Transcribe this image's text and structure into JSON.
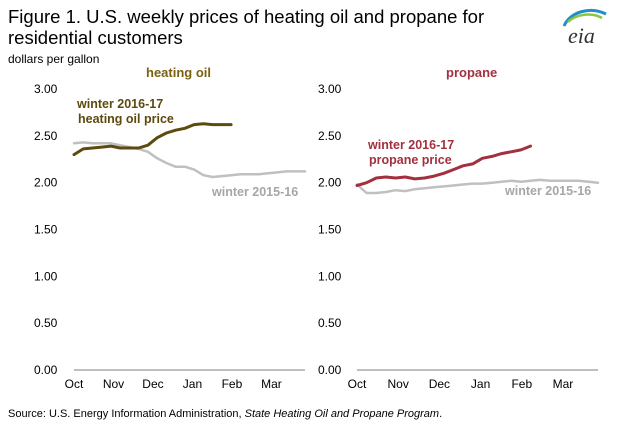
{
  "figure": {
    "title": "Figure 1. U.S. weekly prices of heating oil and propane for residential customers",
    "units": "dollars per gallon",
    "source_prefix": "Source: U.S. Energy Information Administration, ",
    "source_italic": "State Heating Oil and Propane Program",
    "source_suffix": ".",
    "logo_text": "eia",
    "colors": {
      "heating_oil": "#5c4a0e",
      "propane": "#a3303f",
      "prior_winter": "#c0c0c0",
      "logo_blue": "#1f8fc9",
      "logo_green": "#8cc63f"
    }
  },
  "chart_data": [
    {
      "type": "line",
      "title": "heating oil",
      "title_color": "#7a6012",
      "x_tick_labels": [
        "Oct",
        "Nov",
        "Dec",
        "Jan",
        "Feb",
        "Mar"
      ],
      "ylim": [
        0,
        3
      ],
      "y_ticks": [
        "3.00",
        "2.50",
        "2.00",
        "1.50",
        "1.00",
        "0.50",
        "0.00"
      ],
      "grid": false,
      "series": [
        {
          "name": "winter 2016-17 heating oil price",
          "label_lines": [
            "winter 2016-17",
            "heating oil price"
          ],
          "color": "#5c4a0e",
          "x": [
            0,
            1,
            2,
            3,
            4,
            5,
            6,
            7,
            8,
            9,
            10,
            11,
            12,
            13,
            14,
            15,
            16,
            17
          ],
          "values": [
            2.3,
            2.36,
            2.37,
            2.38,
            2.39,
            2.37,
            2.37,
            2.37,
            2.4,
            2.48,
            2.53,
            2.56,
            2.58,
            2.62,
            2.63,
            2.62,
            2.62,
            2.62
          ]
        },
        {
          "name": "winter 2015-16",
          "label_lines": [
            "winter 2015-16"
          ],
          "color": "#c0c0c0",
          "x": [
            0,
            1,
            2,
            3,
            4,
            5,
            6,
            7,
            8,
            9,
            10,
            11,
            12,
            13,
            14,
            15,
            16,
            17,
            18,
            19,
            20,
            21,
            22,
            23,
            24,
            25
          ],
          "values": [
            2.42,
            2.43,
            2.42,
            2.42,
            2.42,
            2.4,
            2.38,
            2.36,
            2.33,
            2.26,
            2.21,
            2.17,
            2.17,
            2.14,
            2.08,
            2.06,
            2.07,
            2.08,
            2.09,
            2.09,
            2.09,
            2.1,
            2.11,
            2.12,
            2.12,
            2.12
          ]
        }
      ]
    },
    {
      "type": "line",
      "title": "propane",
      "title_color": "#a3303f",
      "x_tick_labels": [
        "Oct",
        "Nov",
        "Dec",
        "Jan",
        "Feb",
        "Mar"
      ],
      "ylim": [
        0,
        3
      ],
      "y_ticks": [
        "3.00",
        "2.50",
        "2.00",
        "1.50",
        "1.00",
        "0.50",
        "0.00"
      ],
      "grid": false,
      "series": [
        {
          "name": "winter 2016-17 propane price",
          "label_lines": [
            "winter 2016-17",
            "propane price"
          ],
          "color": "#a3303f",
          "x": [
            0,
            1,
            2,
            3,
            4,
            5,
            6,
            7,
            8,
            9,
            10,
            11,
            12,
            13,
            14,
            15,
            16,
            17,
            18
          ],
          "values": [
            1.97,
            2.0,
            2.05,
            2.06,
            2.05,
            2.06,
            2.04,
            2.05,
            2.07,
            2.1,
            2.14,
            2.18,
            2.2,
            2.26,
            2.28,
            2.31,
            2.33,
            2.35,
            2.39
          ]
        },
        {
          "name": "winter 2015-16",
          "label_lines": [
            "winter 2015-16"
          ],
          "color": "#c0c0c0",
          "x": [
            0,
            1,
            2,
            3,
            4,
            5,
            6,
            7,
            8,
            9,
            10,
            11,
            12,
            13,
            14,
            15,
            16,
            17,
            18,
            19,
            20,
            21,
            22,
            23,
            24,
            25
          ],
          "values": [
            1.98,
            1.89,
            1.89,
            1.9,
            1.92,
            1.91,
            1.93,
            1.94,
            1.95,
            1.96,
            1.97,
            1.98,
            1.99,
            1.99,
            2.0,
            2.01,
            2.02,
            2.01,
            2.02,
            2.03,
            2.02,
            2.02,
            2.02,
            2.02,
            2.01,
            2.0
          ]
        }
      ]
    }
  ]
}
